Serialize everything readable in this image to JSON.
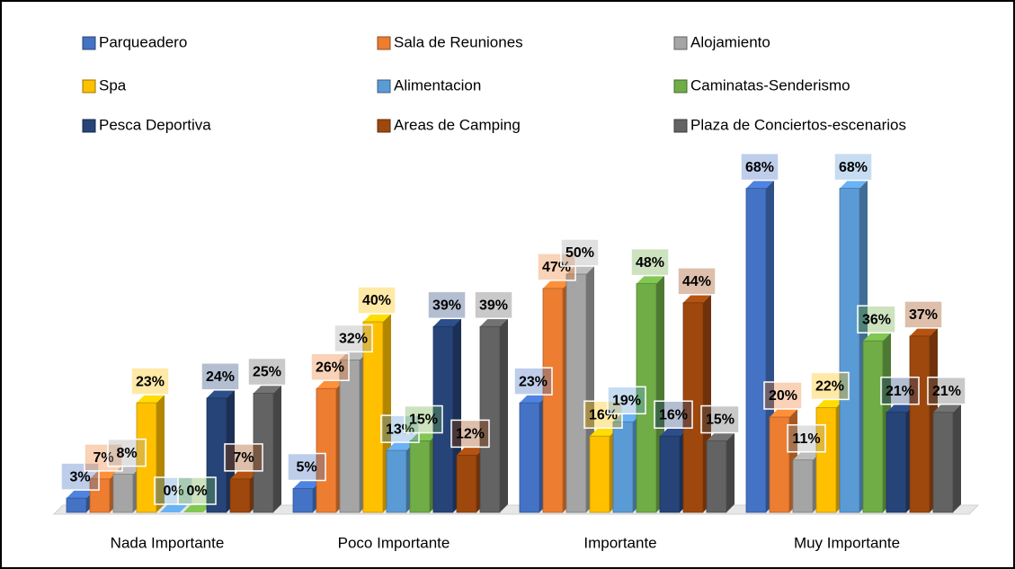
{
  "chart_data": {
    "type": "bar3d",
    "categories": [
      "Nada Importante",
      "Poco Importante",
      "Importante",
      "Muy Importante"
    ],
    "series": [
      {
        "name": "Parqueadero",
        "color": "#4472c4",
        "values": [
          3,
          5,
          23,
          68
        ],
        "value_labels": [
          "3%",
          "5%",
          "23%",
          "68%"
        ]
      },
      {
        "name": "Sala de Reuniones",
        "color": "#ed7d31",
        "values": [
          7,
          26,
          47,
          20
        ],
        "value_labels": [
          "7%",
          "26%",
          "47%",
          "20%"
        ]
      },
      {
        "name": "Alojamiento",
        "color": "#a5a5a5",
        "values": [
          8,
          32,
          50,
          11
        ],
        "value_labels": [
          "8%",
          "32%",
          "50%",
          "11%"
        ]
      },
      {
        "name": "Spa",
        "color": "#ffc000",
        "values": [
          23,
          40,
          16,
          22
        ],
        "value_labels": [
          "23%",
          "40%",
          "16%",
          "22%"
        ]
      },
      {
        "name": "Alimentacion",
        "color": "#5b9bd5",
        "values": [
          0,
          13,
          19,
          68
        ],
        "value_labels": [
          "0%",
          "13%",
          "19%",
          "68%"
        ]
      },
      {
        "name": "Caminatas-Senderismo",
        "color": "#70ad47",
        "values": [
          0,
          15,
          48,
          36
        ],
        "value_labels": [
          "0%",
          "15%",
          "48%",
          "36%"
        ]
      },
      {
        "name": "Pesca Deportiva",
        "color": "#264478",
        "values": [
          24,
          39,
          16,
          21
        ],
        "value_labels": [
          "24%",
          "39%",
          "16%",
          "21%"
        ]
      },
      {
        "name": "Areas de Camping",
        "color": "#9e480e",
        "values": [
          7,
          12,
          44,
          37
        ],
        "value_labels": [
          "7%",
          "12%",
          "44%",
          "37%"
        ]
      },
      {
        "name": "Plaza de Conciertos-escenarios",
        "color": "#636363",
        "values": [
          25,
          39,
          15,
          21
        ],
        "value_labels": [
          "25%",
          "39%",
          "15%",
          "21%"
        ]
      }
    ]
  }
}
